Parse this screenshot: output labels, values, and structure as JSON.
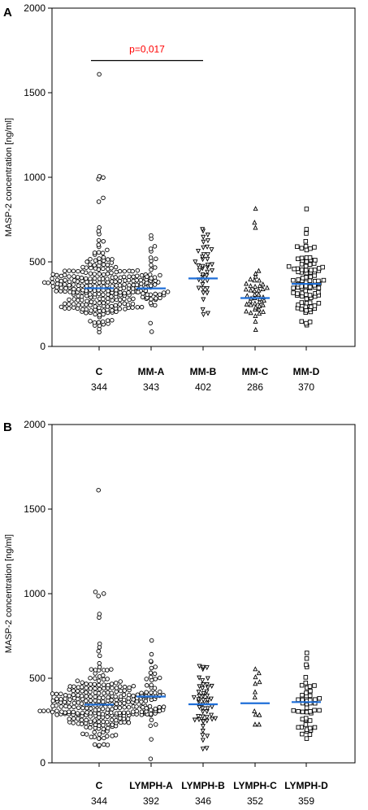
{
  "chart_data": [
    {
      "panel_label": "A",
      "type": "scatter",
      "subtype": "dot-plot",
      "ylabel": "MASP-2 concentration [ng/ml]",
      "xlabel": "",
      "ylim": [
        0,
        2000
      ],
      "yticks": [
        0,
        500,
        1000,
        1500,
        2000
      ],
      "grid": false,
      "legend": "none",
      "median_line_color": "#1f6fd8",
      "annotation": {
        "text": "p=0,017",
        "color": "#ff0000",
        "from_group": "C",
        "to_group": "MM-B",
        "y_value": 1690
      },
      "groups": [
        {
          "label": "C",
          "median": 344,
          "median_label": "344",
          "marker": "circle",
          "n": 260,
          "outliers": [
            1610,
            1010,
            1000,
            990,
            880,
            860,
            700,
            680,
            660
          ]
        },
        {
          "label": "MM-A",
          "median": 343,
          "median_label": "343",
          "marker": "circle",
          "n": 40,
          "outliers": [
            660,
            640,
            580
          ]
        },
        {
          "label": "MM-B",
          "median": 402,
          "median_label": "402",
          "marker": "triangle-down",
          "n": 38,
          "outliers": [
            680,
            660,
            620
          ]
        },
        {
          "label": "MM-C",
          "median": 286,
          "median_label": "286",
          "marker": "triangle-up",
          "n": 42,
          "outliers": [
            820,
            730,
            700
          ]
        },
        {
          "label": "MM-D",
          "median": 370,
          "median_label": "370",
          "marker": "square",
          "n": 92,
          "outliers": [
            810,
            690,
            670
          ]
        }
      ]
    },
    {
      "panel_label": "B",
      "type": "scatter",
      "subtype": "dot-plot",
      "ylabel": "MASP-2 concentration [ng/ml]",
      "xlabel": "",
      "ylim": [
        0,
        2000
      ],
      "yticks": [
        0,
        500,
        1000,
        1500,
        2000
      ],
      "grid": false,
      "legend": "none",
      "median_line_color": "#1f6fd8",
      "groups": [
        {
          "label": "C",
          "median": 344,
          "median_label": "344",
          "marker": "circle",
          "n": 260,
          "outliers": [
            1610,
            1010,
            1000,
            990,
            880,
            860,
            700,
            680,
            660
          ]
        },
        {
          "label": "LYMPH-A",
          "median": 392,
          "median_label": "392",
          "marker": "circle",
          "n": 44,
          "outliers": [
            720,
            640,
            600
          ]
        },
        {
          "label": "LYMPH-B",
          "median": 346,
          "median_label": "346",
          "marker": "triangle-down",
          "n": 48,
          "outliers": [
            570,
            560,
            550
          ]
        },
        {
          "label": "LYMPH-C",
          "median": 352,
          "median_label": "352",
          "marker": "triangle-up",
          "n": 10,
          "outliers": [
            530,
            510
          ]
        },
        {
          "label": "LYMPH-D",
          "median": 359,
          "median_label": "359",
          "marker": "square",
          "n": 46,
          "outliers": [
            650,
            620,
            580
          ]
        }
      ]
    }
  ]
}
